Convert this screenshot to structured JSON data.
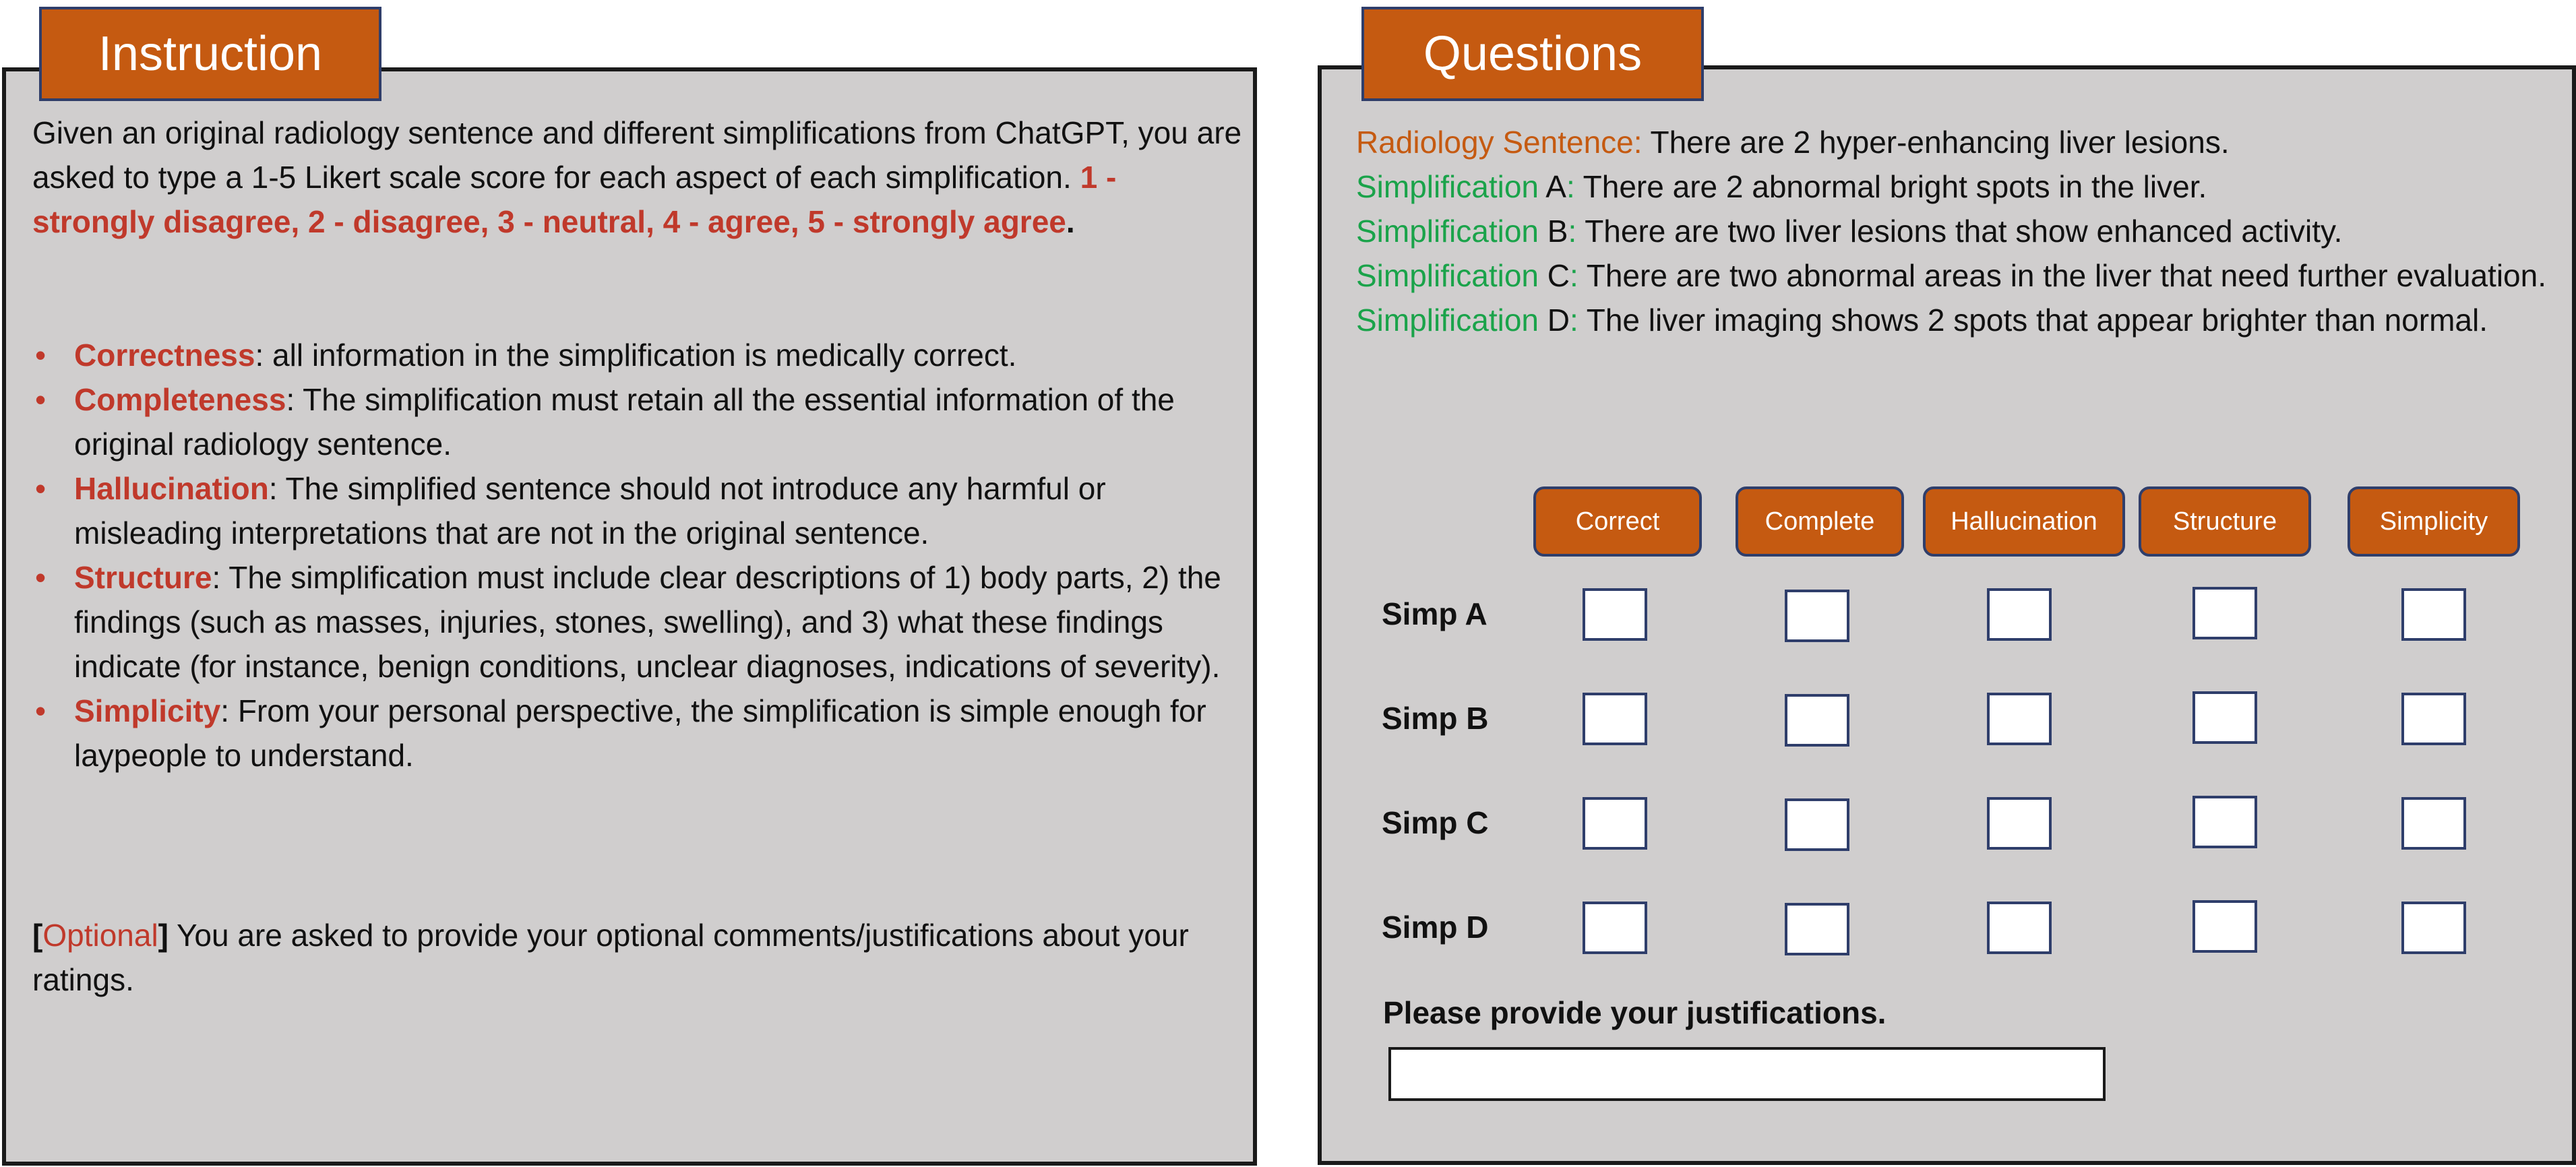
{
  "instruction": {
    "tab_label": "Instruction",
    "intro_text": "Given an original radiology sentence and different simplifications from ChatGPT, you are asked to type a 1-5 Likert scale score for each aspect of each simplification.",
    "scale_text": "1 - strongly disagree, 2 - disagree, 3 - neutral, 4 - agree, 5  - strongly agree",
    "scale_end": ".",
    "criteria": [
      {
        "term": "Correctness",
        "desc": ": all information in the simplification is medically correct."
      },
      {
        "term": "Completeness",
        "desc": ": The simplification must retain all the essential information of the original radiology sentence."
      },
      {
        "term": "Hallucination",
        "desc": ": The simplified sentence should not introduce any harmful or misleading interpretations that are not in the original sentence."
      },
      {
        "term": "Structure",
        "desc": ": The simplification must include clear descriptions of 1) body parts, 2) the findings (such as masses, injuries, stones, swelling), and 3) what these findings indicate (for instance, benign conditions, unclear diagnoses, indications of severity)."
      },
      {
        "term": "Simplicity",
        "desc": ": From your personal perspective, the simplification is simple enough for laypeople to understand."
      }
    ],
    "optional_open": "[",
    "optional_term": "Optional",
    "optional_close": "]",
    "optional_text": " You are asked to provide your optional comments/justifications about your ratings."
  },
  "questions": {
    "tab_label": "Questions",
    "radiology_label": "Radiology Sentence:",
    "radiology_text": " There are 2 hyper-enhancing liver lesions.",
    "simplifications": [
      {
        "label": "Simplification",
        "letter": " A",
        "colon": ":",
        "text": " There are 2 abnormal bright spots in the liver."
      },
      {
        "label": "Simplification",
        "letter": " B",
        "colon": ":",
        "text": " There are two liver lesions that show enhanced activity."
      },
      {
        "label": "Simplification",
        "letter": " C",
        "colon": ":",
        "text": " There are two abnormal areas in the liver that need further evaluation."
      },
      {
        "label": "Simplification",
        "letter": " D",
        "colon": ":",
        "text": " The liver imaging shows 2 spots that appear brighter than normal."
      }
    ],
    "columns": [
      "Correct",
      "Complete",
      "Hallucination",
      "Structure",
      "Simplicity"
    ],
    "rows": [
      "Simp A",
      "Simp B",
      "Simp C",
      "Simp D"
    ],
    "justification_label": "Please provide your justifications.",
    "justification_value": ""
  },
  "colors": {
    "panel_bg": "#d0cece",
    "tab_orange": "#c55a11",
    "term_red": "#c0392b",
    "simplification_green": "#1aa34a",
    "border_navy": "#2f3e6b"
  }
}
